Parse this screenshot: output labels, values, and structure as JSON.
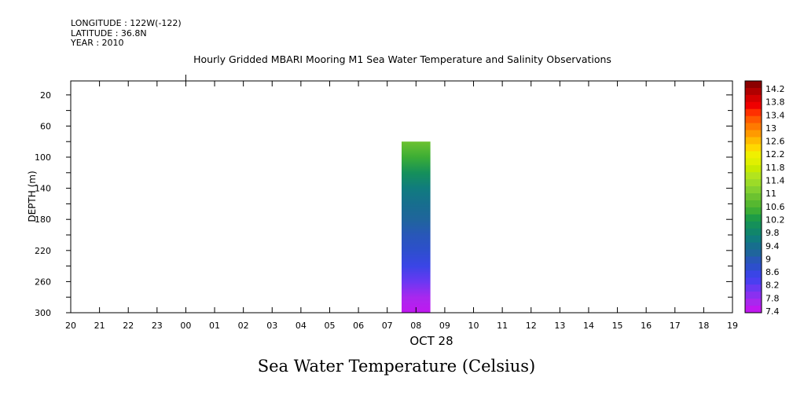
{
  "header": {
    "longitude": "LONGITUDE : 122W(-122)",
    "latitude": "LATITUDE : 36.8N",
    "year": "YEAR : 2010"
  },
  "footer_title": "Sea Water Temperature (Celsius)",
  "chart_data": {
    "type": "heatmap",
    "title": "Hourly Gridded MBARI Mooring M1 Sea Water Temperature and Salinity Observations",
    "xlabel": "OCT 28",
    "ylabel": "DEPTH (m)",
    "x_tick_labels": [
      "20",
      "21",
      "22",
      "23",
      "00",
      "01",
      "02",
      "03",
      "04",
      "05",
      "06",
      "07",
      "08",
      "09",
      "10",
      "11",
      "12",
      "13",
      "14",
      "15",
      "16",
      "17",
      "18",
      "19"
    ],
    "y_ticks": [
      20,
      60,
      100,
      140,
      180,
      220,
      260,
      300
    ],
    "ylim": [
      2,
      300
    ],
    "y_inverted": true,
    "data_column": {
      "hour": "08",
      "depth_range": [
        80,
        300
      ],
      "depths": [
        80,
        100,
        120,
        140,
        160,
        180,
        200,
        220,
        240,
        260,
        280,
        300
      ],
      "values": [
        10.8,
        10.3,
        9.9,
        9.6,
        9.3,
        9.1,
        8.9,
        8.7,
        8.5,
        8.2,
        7.8,
        7.5
      ]
    },
    "colorbar": {
      "labels": [
        "14.2",
        "13.8",
        "13.4",
        "13",
        "12.6",
        "12.2",
        "11.8",
        "11.4",
        "11",
        "10.6",
        "10.2",
        "9.8",
        "9.4",
        "9",
        "8.6",
        "8.2",
        "7.8",
        "7.4"
      ],
      "colors": [
        "#8b0000",
        "#b00000",
        "#d40000",
        "#f00000",
        "#ff3000",
        "#ff5a00",
        "#ff7a00",
        "#ff9a00",
        "#ffbb00",
        "#ffd800",
        "#f0f000",
        "#e0f000",
        "#c8eb00",
        "#b2e41e",
        "#9cdb28",
        "#84d030",
        "#6cc230",
        "#56b830",
        "#3cad35",
        "#1e9c46",
        "#15905a",
        "#11866a",
        "#107c7e",
        "#176e8e",
        "#1f659c",
        "#2857b8",
        "#2d4fcc",
        "#3a45e6",
        "#4a3ff0",
        "#6a38f2",
        "#8a30f0",
        "#a828ee",
        "#c018f0"
      ]
    }
  }
}
